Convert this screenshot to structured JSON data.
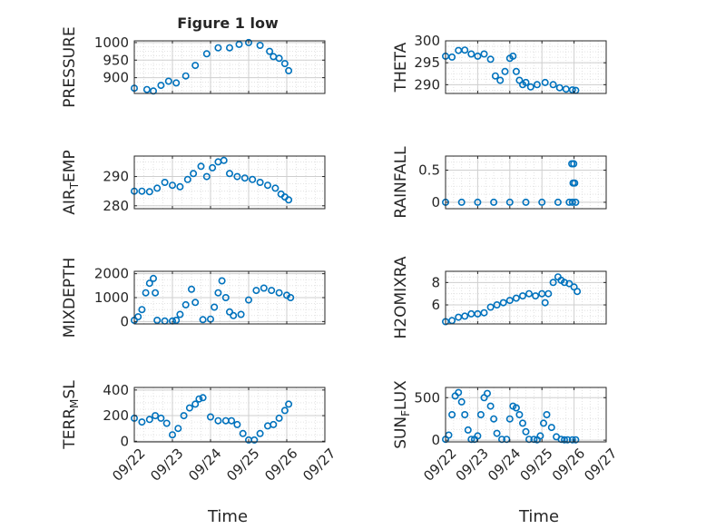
{
  "figure": {
    "title": "Figure 1 low",
    "xlabel": "Time",
    "marker_color": "#0072bd",
    "axis_color": "#262626",
    "grid_color": "#dcdcdc"
  },
  "chart_data": [
    {
      "type": "scatter",
      "ylabel": "PRESSURE",
      "ylabel_sub": "",
      "ylabel_after": "",
      "ylim": [
        855,
        1005
      ],
      "yticks": [
        900,
        950,
        1000
      ],
      "ytick_labels": [
        "900",
        "950",
        "1000"
      ],
      "xlim": [
        0,
        5
      ],
      "xticks": [
        0,
        1,
        2,
        3,
        4,
        5
      ],
      "xtick_labels": [
        "09/22",
        "09/23",
        "09/24",
        "09/25",
        "09/26",
        "09/27"
      ],
      "show_xticklabels": false,
      "grid": true,
      "minor_grid": true,
      "series": [
        {
          "x": [
            0.0,
            0.33,
            0.5,
            0.7,
            0.9,
            1.1,
            1.35,
            1.6,
            1.9,
            2.2,
            2.5,
            2.75,
            3.0,
            3.3,
            3.55,
            3.65,
            3.8,
            3.95,
            4.05
          ],
          "y": [
            870,
            866,
            862,
            878,
            890,
            885,
            905,
            935,
            968,
            985,
            985,
            995,
            1000,
            992,
            975,
            960,
            955,
            940,
            920
          ]
        }
      ]
    },
    {
      "type": "scatter",
      "ylabel": "THETA",
      "ylabel_sub": "",
      "ylabel_after": "",
      "ylim": [
        288,
        300
      ],
      "yticks": [
        290,
        295,
        300
      ],
      "ytick_labels": [
        "290",
        "295",
        "300"
      ],
      "xlim": [
        0,
        5
      ],
      "xticks": [
        0,
        1,
        2,
        3,
        4,
        5
      ],
      "xtick_labels": [
        "09/22",
        "09/23",
        "09/24",
        "09/25",
        "09/26",
        "09/27"
      ],
      "show_xticklabels": false,
      "grid": true,
      "minor_grid": true,
      "series": [
        {
          "x": [
            0.0,
            0.2,
            0.4,
            0.6,
            0.8,
            1.0,
            1.2,
            1.4,
            1.55,
            1.7,
            1.85,
            2.0,
            2.1,
            2.2,
            2.3,
            2.4,
            2.5,
            2.65,
            2.85,
            3.1,
            3.35,
            3.55,
            3.75,
            3.95,
            4.05
          ],
          "y": [
            296.5,
            296.3,
            297.8,
            297.9,
            297.0,
            296.5,
            297.0,
            295.8,
            292.0,
            291.0,
            293.0,
            296.0,
            296.5,
            293.0,
            291.0,
            290.0,
            290.5,
            289.5,
            290.0,
            290.5,
            290.0,
            289.3,
            289.0,
            288.8,
            288.7
          ]
        }
      ]
    },
    {
      "type": "scatter",
      "ylabel": "AIR",
      "ylabel_sub": "T",
      "ylabel_after": "EMP",
      "ylim": [
        279,
        297
      ],
      "yticks": [
        280,
        290
      ],
      "ytick_labels": [
        "280",
        "290"
      ],
      "xlim": [
        0,
        5
      ],
      "xticks": [
        0,
        1,
        2,
        3,
        4,
        5
      ],
      "xtick_labels": [
        "09/22",
        "09/23",
        "09/24",
        "09/25",
        "09/26",
        "09/27"
      ],
      "show_xticklabels": false,
      "grid": true,
      "minor_grid": true,
      "series": [
        {
          "x": [
            0.0,
            0.2,
            0.4,
            0.6,
            0.8,
            1.0,
            1.2,
            1.4,
            1.55,
            1.75,
            1.9,
            2.05,
            2.2,
            2.35,
            2.5,
            2.7,
            2.9,
            3.1,
            3.3,
            3.5,
            3.7,
            3.85,
            3.95,
            4.05
          ],
          "y": [
            285.0,
            285.0,
            284.8,
            286.0,
            288.0,
            287.0,
            286.5,
            289.0,
            291.0,
            293.5,
            290.0,
            293.0,
            295.0,
            295.5,
            291.0,
            290.0,
            289.5,
            289.0,
            288.0,
            287.0,
            286.0,
            284.0,
            283.0,
            282.0
          ]
        }
      ]
    },
    {
      "type": "scatter",
      "ylabel": "RAINFALL",
      "ylabel_sub": "",
      "ylabel_after": "",
      "ylim": [
        -0.1,
        0.72
      ],
      "yticks": [
        0,
        0.5
      ],
      "ytick_labels": [
        "0",
        "0.5"
      ],
      "xlim": [
        0,
        5
      ],
      "xticks": [
        0,
        1,
        2,
        3,
        4,
        5
      ],
      "xtick_labels": [
        "09/22",
        "09/23",
        "09/24",
        "09/25",
        "09/26",
        "09/27"
      ],
      "show_xticklabels": false,
      "grid": true,
      "minor_grid": true,
      "series": [
        {
          "x": [
            0.0,
            0.5,
            1.0,
            1.5,
            2.0,
            2.5,
            3.0,
            3.5,
            3.85,
            3.95,
            4.05,
            3.97,
            4.02,
            3.93,
            3.99
          ],
          "y": [
            0,
            0,
            0,
            0,
            0,
            0,
            0,
            0,
            0,
            0,
            0,
            0.3,
            0.3,
            0.6,
            0.6
          ]
        }
      ]
    },
    {
      "type": "scatter",
      "ylabel": "MIXDEPTH",
      "ylabel_sub": "",
      "ylabel_after": "",
      "ylim": [
        -100,
        2100
      ],
      "yticks": [
        0,
        1000,
        2000
      ],
      "ytick_labels": [
        "0",
        "1000",
        "2000"
      ],
      "xlim": [
        0,
        5
      ],
      "xticks": [
        0,
        1,
        2,
        3,
        4,
        5
      ],
      "xtick_labels": [
        "09/22",
        "09/23",
        "09/24",
        "09/25",
        "09/26",
        "09/27"
      ],
      "show_xticklabels": false,
      "grid": true,
      "minor_grid": true,
      "series": [
        {
          "x": [
            0.0,
            0.1,
            0.2,
            0.3,
            0.4,
            0.5,
            0.55,
            0.6,
            0.8,
            1.0,
            1.1,
            1.2,
            1.35,
            1.5,
            1.6,
            1.8,
            2.0,
            2.1,
            2.2,
            2.3,
            2.4,
            2.5,
            2.6,
            2.8,
            3.0,
            3.2,
            3.4,
            3.6,
            3.8,
            4.0,
            4.1
          ],
          "y": [
            50,
            200,
            500,
            1200,
            1600,
            1800,
            1200,
            50,
            20,
            20,
            50,
            300,
            700,
            1350,
            800,
            80,
            100,
            600,
            1200,
            1700,
            1000,
            400,
            250,
            300,
            900,
            1300,
            1400,
            1300,
            1200,
            1100,
            1000
          ]
        }
      ]
    },
    {
      "type": "scatter",
      "ylabel": "H2OMIXRA",
      "ylabel_sub": "",
      "ylabel_after": "",
      "ylim": [
        4.3,
        9.0
      ],
      "yticks": [
        6,
        8
      ],
      "ytick_labels": [
        "6",
        "8"
      ],
      "xlim": [
        0,
        5
      ],
      "xticks": [
        0,
        1,
        2,
        3,
        4,
        5
      ],
      "xtick_labels": [
        "09/22",
        "09/23",
        "09/24",
        "09/25",
        "09/26",
        "09/27"
      ],
      "show_xticklabels": false,
      "grid": true,
      "minor_grid": true,
      "series": [
        {
          "x": [
            0.0,
            0.2,
            0.4,
            0.6,
            0.8,
            1.0,
            1.2,
            1.4,
            1.6,
            1.8,
            2.0,
            2.2,
            2.4,
            2.6,
            2.8,
            3.0,
            3.1,
            3.2,
            3.35,
            3.5,
            3.6,
            3.7,
            3.85,
            4.0,
            4.1
          ],
          "y": [
            4.5,
            4.6,
            4.9,
            5.0,
            5.2,
            5.2,
            5.3,
            5.8,
            6.0,
            6.2,
            6.4,
            6.6,
            6.8,
            7.0,
            6.8,
            7.0,
            6.2,
            7.0,
            8.0,
            8.5,
            8.2,
            8.0,
            7.9,
            7.6,
            7.2
          ]
        }
      ]
    },
    {
      "type": "scatter",
      "ylabel": "TERR",
      "ylabel_sub": "M",
      "ylabel_after": "SL",
      "ylim": [
        -5,
        420
      ],
      "yticks": [
        0,
        200,
        400
      ],
      "ytick_labels": [
        "0",
        "200",
        "400"
      ],
      "xlim": [
        0,
        5
      ],
      "xticks": [
        0,
        1,
        2,
        3,
        4,
        5
      ],
      "xtick_labels": [
        "09/22",
        "09/23",
        "09/24",
        "09/25",
        "09/26",
        "09/27"
      ],
      "show_xticklabels": true,
      "grid": true,
      "minor_grid": true,
      "series": [
        {
          "x": [
            0.0,
            0.2,
            0.4,
            0.55,
            0.7,
            0.85,
            1.0,
            1.15,
            1.3,
            1.45,
            1.6,
            1.7,
            1.8,
            2.0,
            2.2,
            2.4,
            2.55,
            2.7,
            2.85,
            3.0,
            3.15,
            3.3,
            3.5,
            3.65,
            3.8,
            3.95,
            4.05
          ],
          "y": [
            180,
            150,
            170,
            200,
            180,
            140,
            50,
            100,
            200,
            260,
            290,
            330,
            340,
            190,
            160,
            160,
            160,
            130,
            60,
            10,
            10,
            60,
            120,
            130,
            180,
            240,
            290
          ]
        }
      ]
    },
    {
      "type": "scatter",
      "ylabel": "SUN",
      "ylabel_sub": "F",
      "ylabel_after": "LUX",
      "ylim": [
        -20,
        620
      ],
      "yticks": [
        0,
        500
      ],
      "ytick_labels": [
        "0",
        "500"
      ],
      "xlim": [
        0,
        5
      ],
      "xticks": [
        0,
        1,
        2,
        3,
        4,
        5
      ],
      "xtick_labels": [
        "09/22",
        "09/23",
        "09/24",
        "09/25",
        "09/26",
        "09/27"
      ],
      "show_xticklabels": true,
      "grid": true,
      "minor_grid": true,
      "series": [
        {
          "x": [
            0.0,
            0.1,
            0.2,
            0.3,
            0.4,
            0.5,
            0.6,
            0.7,
            0.8,
            0.9,
            1.0,
            1.1,
            1.2,
            1.3,
            1.4,
            1.5,
            1.6,
            1.75,
            1.9,
            2.0,
            2.1,
            2.2,
            2.3,
            2.4,
            2.5,
            2.6,
            2.75,
            2.85,
            2.95,
            3.05,
            3.15,
            3.3,
            3.45,
            3.6,
            3.7,
            3.8,
            3.95,
            4.05
          ],
          "y": [
            10,
            60,
            300,
            520,
            560,
            450,
            300,
            120,
            10,
            10,
            50,
            300,
            500,
            550,
            400,
            250,
            80,
            10,
            10,
            250,
            400,
            380,
            300,
            200,
            100,
            10,
            10,
            5,
            50,
            200,
            300,
            150,
            40,
            10,
            5,
            5,
            5,
            5
          ]
        }
      ]
    }
  ]
}
